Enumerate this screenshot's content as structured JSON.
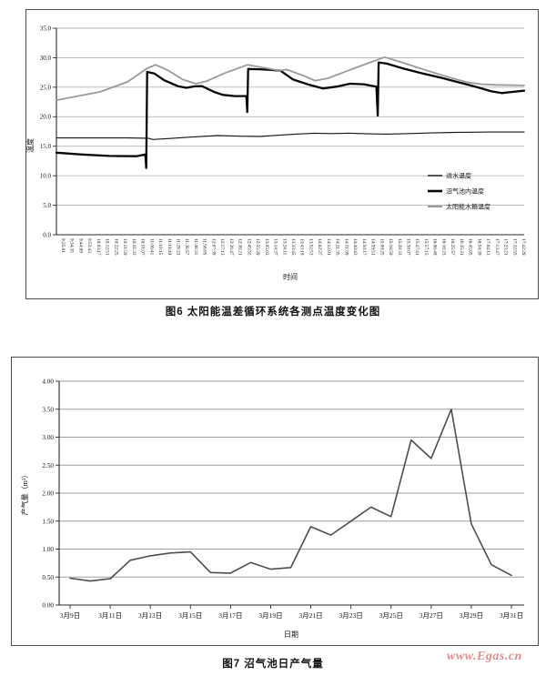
{
  "watermark": {
    "text": "www.Egas.cn",
    "color": "#e08d8d"
  },
  "chart_data": [
    {
      "id": "fig6",
      "type": "line",
      "caption": "图6  太阳能温差循环系统各测点温度变化图",
      "xlabel": "时间",
      "ylabel": "温度",
      "ylim": [
        0,
        35
      ],
      "ytick_step": 5,
      "ytick_labels": [
        "0.0",
        "5.0",
        "10.0",
        "15.0",
        "20.0",
        "25.0",
        "30.0",
        "35.0"
      ],
      "grid": true,
      "legend_position": "inside-right",
      "x_categories": [
        "9:25:01",
        "9:34:35",
        "9:44:09",
        "9:53:43",
        "10:03:17",
        "10:12:51",
        "10:22:25",
        "10:31:59",
        "10:41:33",
        "10:51:07",
        "11:00:41",
        "11:10:15",
        "11:19:49",
        "11:29:23",
        "11:38:57",
        "11:48:31",
        "11:58:05",
        "12:07:39",
        "12:17:13",
        "12:26:47",
        "12:36:21",
        "12:45:55",
        "12:55:29",
        "13:05:03",
        "13:14:37",
        "13:24:11",
        "13:33:45",
        "13:43:19",
        "13:52:53",
        "14:02:27",
        "14:12:01",
        "14:21:35",
        "14:31:09",
        "14:40:43",
        "14:50:17",
        "14:59:51",
        "15:09:25",
        "15:18:59",
        "15:28:33",
        "15:38:07",
        "15:47:41",
        "15:57:15",
        "16:06:49",
        "16:16:23",
        "16:25:57",
        "16:35:31",
        "16:45:05",
        "16:54:39",
        "17:04:13",
        "17:13:47",
        "17:23:21",
        "17:32:55",
        "17:42:29"
      ],
      "series": [
        {
          "name": "进水温度",
          "color": "#161616",
          "stroke_width": 1.15,
          "points": [
            [
              0.0,
              16.4
            ],
            [
              0.152,
              16.4
            ],
            [
              0.197,
              16.35
            ],
            [
              0.206,
              16.15
            ],
            [
              0.239,
              16.3
            ],
            [
              0.298,
              16.6
            ],
            [
              0.346,
              16.8
            ],
            [
              0.395,
              16.7
            ],
            [
              0.434,
              16.65
            ],
            [
              0.473,
              16.85
            ],
            [
              0.512,
              17.05
            ],
            [
              0.551,
              17.2
            ],
            [
              0.589,
              17.15
            ],
            [
              0.628,
              17.2
            ],
            [
              0.667,
              17.1
            ],
            [
              0.706,
              17.05
            ],
            [
              0.755,
              17.15
            ],
            [
              0.803,
              17.25
            ],
            [
              0.852,
              17.35
            ],
            [
              0.93,
              17.4
            ],
            [
              1.0,
              17.4
            ]
          ]
        },
        {
          "name": "沼气池内温度",
          "color": "#070707",
          "stroke_width": 2.3,
          "points": [
            [
              0.0,
              13.9
            ],
            [
              0.054,
              13.6
            ],
            [
              0.113,
              13.35
            ],
            [
              0.171,
              13.3
            ],
            [
              0.19,
              13.6
            ],
            [
              0.192,
              11.3
            ],
            [
              0.194,
              27.6
            ],
            [
              0.21,
              27.3
            ],
            [
              0.23,
              26.2
            ],
            [
              0.259,
              25.2
            ],
            [
              0.278,
              24.9
            ],
            [
              0.296,
              25.15
            ],
            [
              0.311,
              25.2
            ],
            [
              0.337,
              24.2
            ],
            [
              0.356,
              23.7
            ],
            [
              0.381,
              23.5
            ],
            [
              0.406,
              23.5
            ],
            [
              0.408,
              20.8
            ],
            [
              0.41,
              28.1
            ],
            [
              0.434,
              28.05
            ],
            [
              0.463,
              27.9
            ],
            [
              0.479,
              27.8
            ],
            [
              0.506,
              26.3
            ],
            [
              0.541,
              25.4
            ],
            [
              0.57,
              24.8
            ],
            [
              0.599,
              25.1
            ],
            [
              0.628,
              25.6
            ],
            [
              0.657,
              25.5
            ],
            [
              0.684,
              25.1
            ],
            [
              0.687,
              20.2
            ],
            [
              0.689,
              29.2
            ],
            [
              0.706,
              29.0
            ],
            [
              0.745,
              28.1
            ],
            [
              0.784,
              27.3
            ],
            [
              0.823,
              26.6
            ],
            [
              0.862,
              25.8
            ],
            [
              0.9,
              25.0
            ],
            [
              0.93,
              24.3
            ],
            [
              0.952,
              24.0
            ],
            [
              0.975,
              24.2
            ],
            [
              1.0,
              24.4
            ]
          ]
        },
        {
          "name": "太阳能水箱温度",
          "color": "#9a9a9a",
          "stroke_width": 1.8,
          "points": [
            [
              0.0,
              22.8
            ],
            [
              0.093,
              24.2
            ],
            [
              0.152,
              25.9
            ],
            [
              0.194,
              28.2
            ],
            [
              0.212,
              28.8
            ],
            [
              0.24,
              27.8
            ],
            [
              0.27,
              26.3
            ],
            [
              0.298,
              25.6
            ],
            [
              0.32,
              26.0
            ],
            [
              0.36,
              27.4
            ],
            [
              0.409,
              28.8
            ],
            [
              0.445,
              28.3
            ],
            [
              0.477,
              27.8
            ],
            [
              0.492,
              28.0
            ],
            [
              0.53,
              26.9
            ],
            [
              0.553,
              26.1
            ],
            [
              0.58,
              26.5
            ],
            [
              0.62,
              27.7
            ],
            [
              0.66,
              28.9
            ],
            [
              0.702,
              30.1
            ],
            [
              0.735,
              29.3
            ],
            [
              0.774,
              28.3
            ],
            [
              0.813,
              27.3
            ],
            [
              0.852,
              26.4
            ],
            [
              0.881,
              25.8
            ],
            [
              0.91,
              25.5
            ],
            [
              0.94,
              25.4
            ],
            [
              1.0,
              25.3
            ]
          ]
        }
      ]
    },
    {
      "id": "fig7",
      "type": "line",
      "caption": "图7  沼气池日产气量",
      "xlabel": "日期",
      "ylabel": "产气量（m³）",
      "ylim": [
        0,
        4
      ],
      "ytick_step": 0.5,
      "ytick_labels": [
        "0.00",
        "0.50",
        "1.00",
        "1.50",
        "2.00",
        "2.50",
        "3.00",
        "3.50",
        "4.00"
      ],
      "grid": true,
      "line_color": "#4d4d4d",
      "x_tick_labels": [
        "3月9日",
        "3月11日",
        "3月13日",
        "3月15日",
        "3月17日",
        "3月19日",
        "3月21日",
        "3月23日",
        "3月25日",
        "3月27日",
        "3月29日",
        "3月31日"
      ],
      "values": [
        0.48,
        0.43,
        0.47,
        0.8,
        0.88,
        0.93,
        0.95,
        0.58,
        0.57,
        0.76,
        0.64,
        0.67,
        1.4,
        1.25,
        1.5,
        1.75,
        1.58,
        2.95,
        2.62,
        3.5,
        1.45,
        0.72,
        0.53
      ]
    }
  ]
}
